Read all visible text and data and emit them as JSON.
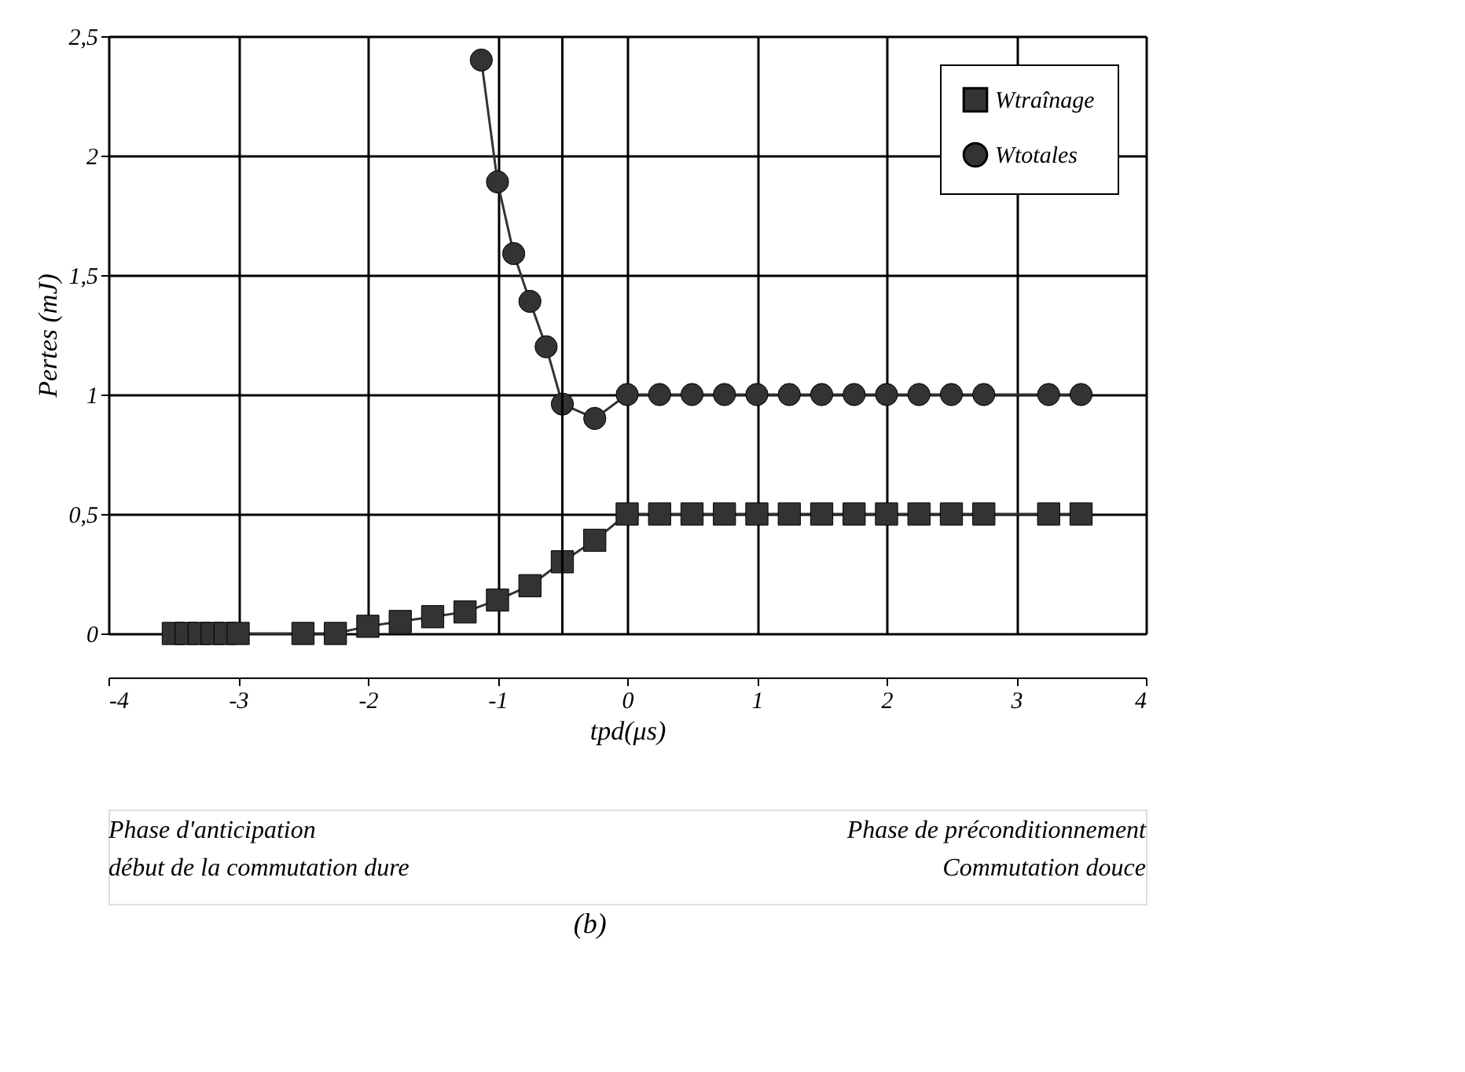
{
  "chart_data": {
    "type": "line",
    "title": "(b)",
    "xlabel": "tpd(μs)",
    "ylabel": "Pertes (mJ)",
    "xlim": [
      -4,
      4
    ],
    "xticks": [
      -4,
      -3,
      -2,
      -1,
      0,
      1,
      2,
      3,
      4
    ],
    "ylim": [
      0,
      2.5
    ],
    "yticks": [
      0,
      {
        "value": 0.5,
        "label": "0,5"
      },
      1,
      {
        "value": 1.5,
        "label": "1,5"
      },
      2,
      {
        "value": 2.5,
        "label": "2,5"
      }
    ],
    "grid": true,
    "legend": "top right",
    "line_style": "solid",
    "series": [
      {
        "name": "Wtraînage",
        "color": "#333333",
        "marker": "square",
        "x": [
          -3.5,
          -3.4,
          -3.3,
          -3.2,
          -3.1,
          -3.0,
          -2.5,
          -2.25,
          -2,
          -1.75,
          -1.5,
          -1.25,
          -1,
          -0.75,
          -0.5,
          -0.25,
          0,
          0.25,
          0.5,
          0.75,
          1,
          1.25,
          1.5,
          1.75,
          2,
          2.25,
          2.5,
          2.75,
          3.25,
          3.5
        ],
        "values": [
          0,
          0,
          0,
          0,
          0,
          0,
          0,
          0,
          0.03,
          0.05,
          0.07,
          0.09,
          0.14,
          0.2,
          0.3,
          0.39,
          0.5,
          0.5,
          0.5,
          0.5,
          0.5,
          0.5,
          0.5,
          0.5,
          0.5,
          0.5,
          0.5,
          0.5,
          0.5,
          0.5
        ]
      },
      {
        "name": "Wtotales",
        "color": "#333333",
        "marker": "circle",
        "x": [
          -1.125,
          -1,
          -0.875,
          -0.75,
          -0.625,
          -0.5,
          -0.25,
          0,
          0.25,
          0.5,
          0.75,
          1,
          1.25,
          1.5,
          1.75,
          2,
          2.25,
          2.5,
          2.75,
          3.25,
          3.5
        ],
        "values": [
          2.4,
          1.89,
          1.59,
          1.39,
          1.2,
          0.96,
          0.9,
          1,
          1,
          1,
          1,
          1,
          1,
          1,
          1,
          1,
          1,
          1,
          1,
          1,
          1
        ]
      }
    ],
    "ref_lines": [
      {
        "axis": "x",
        "value": -0.5,
        "color": "#000000"
      }
    ],
    "annotations": [
      "Phase d'anticipation\ndébut de la commutation dure",
      "Phase de préconditionnement\nCommutation douce"
    ]
  }
}
